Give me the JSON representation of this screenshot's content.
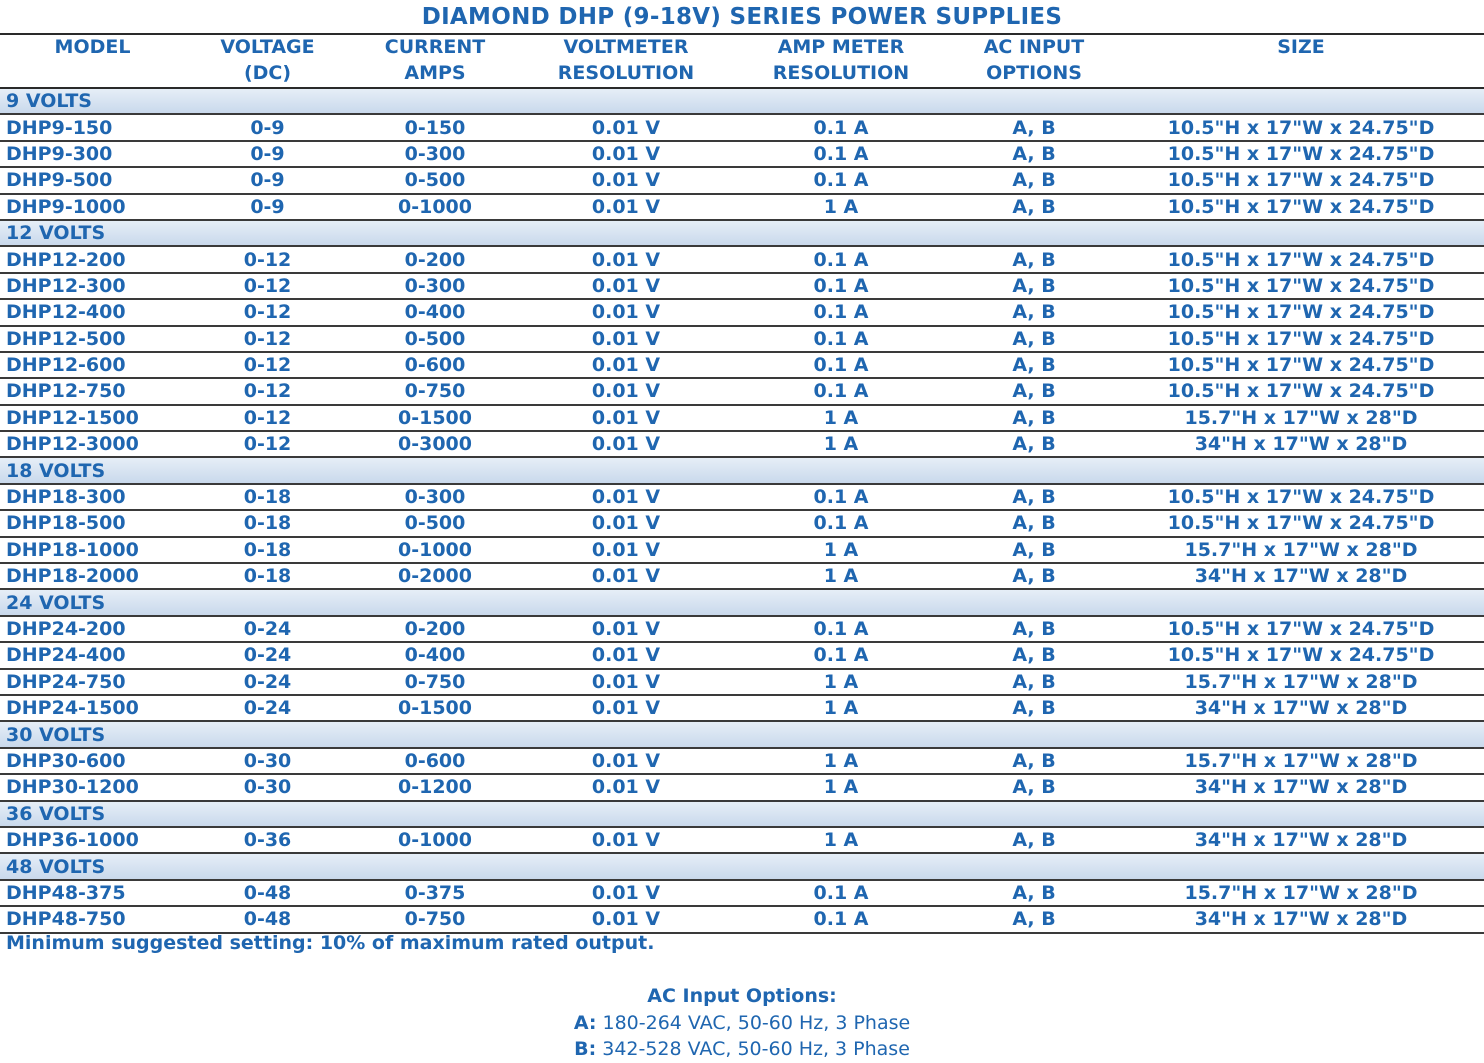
{
  "title": "DIAMOND DHP (9-18V) SERIES POWER SUPPLIES",
  "colors": {
    "text": "#1f66b0",
    "group_band": "#c9d9ec",
    "rule": "#2a2a2a"
  },
  "headers": {
    "model": [
      "MODEL",
      ""
    ],
    "voltage": [
      "VOLTAGE",
      "(DC)"
    ],
    "current": [
      "CURRENT",
      "AMPS"
    ],
    "voltmeter": [
      "VOLTMETER",
      "RESOLUTION"
    ],
    "ammeter": [
      "AMP METER",
      "RESOLUTION"
    ],
    "ac_input": [
      "AC INPUT",
      "OPTIONS"
    ],
    "size": [
      "SIZE",
      ""
    ]
  },
  "groups": [
    {
      "label": "9 VOLTS",
      "rows": [
        [
          "DHP9-150",
          "0-9",
          "0-150",
          "0.01 V",
          "0.1 A",
          "A, B",
          "10.5\"H x 17\"W x 24.75\"D"
        ],
        [
          "DHP9-300",
          "0-9",
          "0-300",
          "0.01 V",
          "0.1 A",
          "A, B",
          "10.5\"H x 17\"W x 24.75\"D"
        ],
        [
          "DHP9-500",
          "0-9",
          "0-500",
          "0.01 V",
          "0.1 A",
          "A, B",
          "10.5\"H x 17\"W x 24.75\"D"
        ],
        [
          "DHP9-1000",
          "0-9",
          "0-1000",
          "0.01 V",
          "1 A",
          "A, B",
          "10.5\"H x 17\"W x 24.75\"D"
        ]
      ]
    },
    {
      "label": "12 VOLTS",
      "rows": [
        [
          "DHP12-200",
          "0-12",
          "0-200",
          "0.01 V",
          "0.1 A",
          "A, B",
          "10.5\"H x 17\"W x 24.75\"D"
        ],
        [
          "DHP12-300",
          "0-12",
          "0-300",
          "0.01 V",
          "0.1 A",
          "A, B",
          "10.5\"H x 17\"W x 24.75\"D"
        ],
        [
          "DHP12-400",
          "0-12",
          "0-400",
          "0.01 V",
          "0.1 A",
          "A, B",
          "10.5\"H x 17\"W x 24.75\"D"
        ],
        [
          "DHP12-500",
          "0-12",
          "0-500",
          "0.01 V",
          "0.1 A",
          "A, B",
          "10.5\"H x 17\"W x 24.75\"D"
        ],
        [
          "DHP12-600",
          "0-12",
          "0-600",
          "0.01 V",
          "0.1 A",
          "A, B",
          "10.5\"H x 17\"W x 24.75\"D"
        ],
        [
          "DHP12-750",
          "0-12",
          "0-750",
          "0.01 V",
          "0.1 A",
          "A, B",
          "10.5\"H x 17\"W x 24.75\"D"
        ],
        [
          "DHP12-1500",
          "0-12",
          "0-1500",
          "0.01 V",
          "1 A",
          "A, B",
          "15.7\"H x 17\"W x 28\"D"
        ],
        [
          "DHP12-3000",
          "0-12",
          "0-3000",
          "0.01 V",
          "1 A",
          "A, B",
          "34\"H x 17\"W x 28\"D"
        ]
      ]
    },
    {
      "label": "18 VOLTS",
      "rows": [
        [
          "DHP18-300",
          "0-18",
          "0-300",
          "0.01 V",
          "0.1 A",
          "A, B",
          "10.5\"H x 17\"W x 24.75\"D"
        ],
        [
          "DHP18-500",
          "0-18",
          "0-500",
          "0.01 V",
          "0.1 A",
          "A, B",
          "10.5\"H x 17\"W x 24.75\"D"
        ],
        [
          "DHP18-1000",
          "0-18",
          "0-1000",
          "0.01 V",
          "1 A",
          "A, B",
          "15.7\"H x 17\"W x 28\"D"
        ],
        [
          "DHP18-2000",
          "0-18",
          "0-2000",
          "0.01 V",
          "1 A",
          "A, B",
          "34\"H x 17\"W x 28\"D"
        ]
      ]
    },
    {
      "label": "24 VOLTS",
      "rows": [
        [
          "DHP24-200",
          "0-24",
          "0-200",
          "0.01 V",
          "0.1 A",
          "A, B",
          "10.5\"H x 17\"W x 24.75\"D"
        ],
        [
          "DHP24-400",
          "0-24",
          "0-400",
          "0.01 V",
          "0.1 A",
          "A, B",
          "10.5\"H x 17\"W x 24.75\"D"
        ],
        [
          "DHP24-750",
          "0-24",
          "0-750",
          "0.01 V",
          "1 A",
          "A, B",
          "15.7\"H x 17\"W x 28\"D"
        ],
        [
          "DHP24-1500",
          "0-24",
          "0-1500",
          "0.01 V",
          "1 A",
          "A, B",
          "34\"H x 17\"W x 28\"D"
        ]
      ]
    },
    {
      "label": "30 VOLTS",
      "rows": [
        [
          "DHP30-600",
          "0-30",
          "0-600",
          "0.01 V",
          "1 A",
          "A, B",
          "15.7\"H x 17\"W x 28\"D"
        ],
        [
          "DHP30-1200",
          "0-30",
          "0-1200",
          "0.01 V",
          "1 A",
          "A, B",
          "34\"H x 17\"W x 28\"D"
        ]
      ]
    },
    {
      "label": "36 VOLTS",
      "rows": [
        [
          "DHP36-1000",
          "0-36",
          "0-1000",
          "0.01 V",
          "1 A",
          "A, B",
          "34\"H x 17\"W x 28\"D"
        ]
      ]
    },
    {
      "label": "48 VOLTS",
      "rows": [
        [
          "DHP48-375",
          "0-48",
          "0-375",
          "0.01 V",
          "0.1 A",
          "A, B",
          "15.7\"H x 17\"W x 28\"D"
        ],
        [
          "DHP48-750",
          "0-48",
          "0-750",
          "0.01 V",
          "0.1 A",
          "A, B",
          "34\"H x 17\"W x 28\"D"
        ]
      ]
    }
  ],
  "note": "Minimum suggested setting: 10% of maximum rated output.",
  "ac_options": {
    "title": "AC Input Options:",
    "lines": [
      {
        "key": "A:",
        "text": " 180-264 VAC, 50-60 Hz, 3 Phase"
      },
      {
        "key": "B:",
        "text": " 342-528 VAC, 50-60 Hz, 3 Phase"
      }
    ]
  }
}
